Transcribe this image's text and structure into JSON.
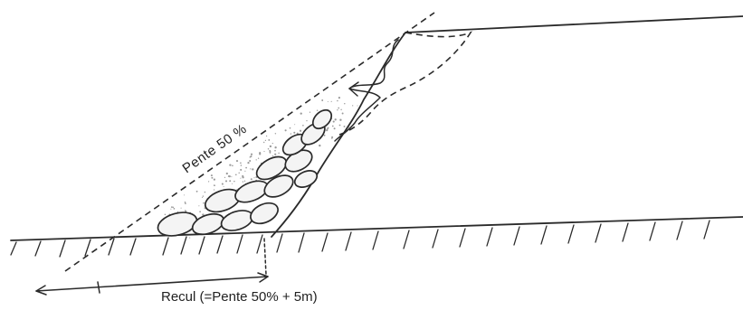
{
  "diagram": {
    "slope_label": "Pente 50 %",
    "setback_label": "Recul (=Pente 50% + 5m)"
  },
  "colors": {
    "ink": "#2a2a2a",
    "paper": "#ffffff",
    "boulder_fill": "#f4f4f4",
    "debris_speckle": "#9a9a9a"
  }
}
